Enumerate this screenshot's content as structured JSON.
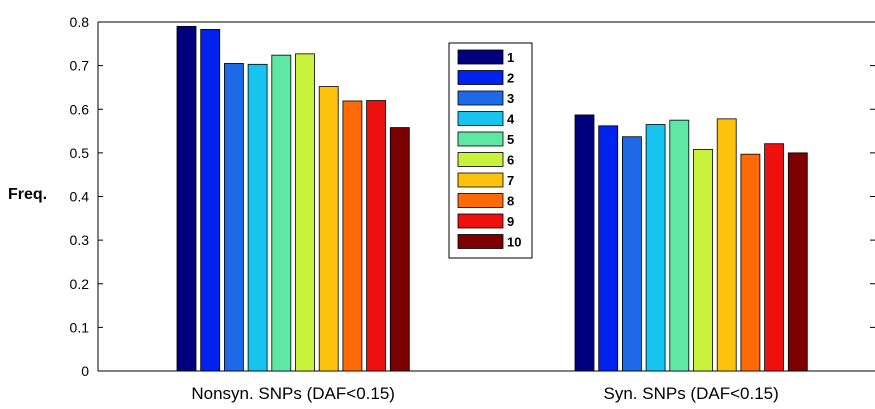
{
  "chart_data": {
    "type": "bar",
    "categories": [
      "Nonsyn. SNPs (DAF<0.15)",
      "Syn. SNPs (DAF<0.15)"
    ],
    "ylabel": "Freq.",
    "xlabel": "",
    "ylim": [
      0,
      0.8
    ],
    "yticks": [
      "0",
      "0.1",
      "0.2",
      "0.3",
      "0.4",
      "0.5",
      "0.6",
      "0.7",
      "0.8"
    ],
    "legend_position": "top-center",
    "series": [
      {
        "name": "1",
        "color": "#00007f",
        "values": [
          0.79,
          0.587
        ]
      },
      {
        "name": "2",
        "color": "#0022ee",
        "values": [
          0.783,
          0.562
        ]
      },
      {
        "name": "3",
        "color": "#1e6ae6",
        "values": [
          0.705,
          0.537
        ]
      },
      {
        "name": "4",
        "color": "#17c3ef",
        "values": [
          0.703,
          0.565
        ]
      },
      {
        "name": "5",
        "color": "#5ee8a4",
        "values": [
          0.724,
          0.575
        ]
      },
      {
        "name": "6",
        "color": "#c8f23c",
        "values": [
          0.727,
          0.508
        ]
      },
      {
        "name": "7",
        "color": "#ffc20c",
        "values": [
          0.652,
          0.578
        ]
      },
      {
        "name": "8",
        "color": "#ff6a08",
        "values": [
          0.619,
          0.497
        ]
      },
      {
        "name": "9",
        "color": "#ee0f0f",
        "values": [
          0.62,
          0.521
        ]
      },
      {
        "name": "10",
        "color": "#7d0000",
        "values": [
          0.558,
          0.5
        ]
      }
    ]
  }
}
